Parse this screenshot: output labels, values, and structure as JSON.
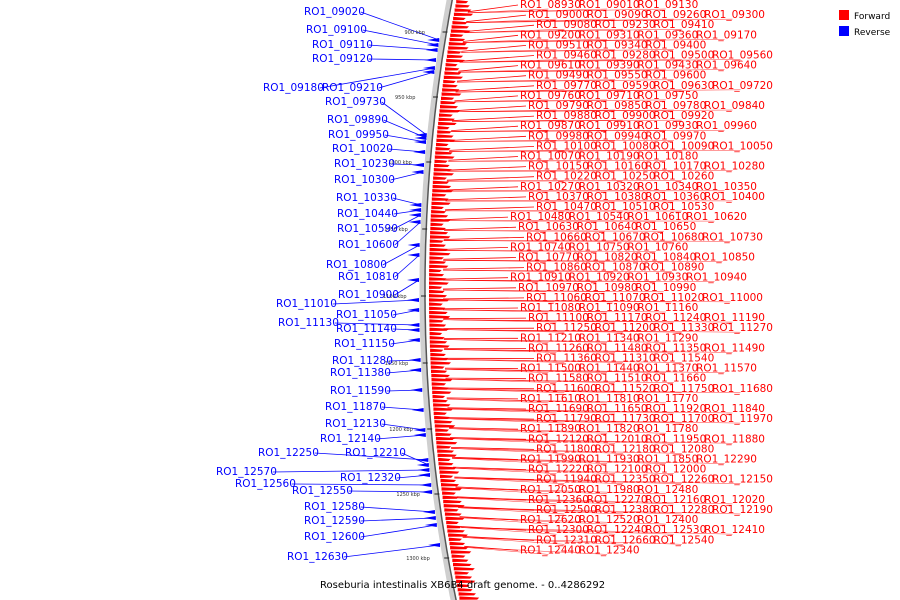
{
  "caption": "Roseburia intestinalis XB6B4 draft genome. - 0..4286292",
  "legend": [
    {
      "label": "Forward",
      "color": "#ff0000"
    },
    {
      "label": "Reverse",
      "color": "#0000ff"
    }
  ],
  "ticks": [
    "900 kbp",
    "950 kbp",
    "1000 kbp",
    "1050 kbp",
    "1100 kbp",
    "1150 kbp",
    "1200 kbp",
    "1250 kbp",
    "1300 kbp"
  ],
  "reverse_labels": [
    "RO1_09020",
    "RO1_09100",
    "RO1_09110",
    "RO1_09120",
    "RO1_09180",
    "RO1_09210",
    "RO1_09730",
    "RO1_09890",
    "RO1_09950",
    "RO1_10020",
    "RO1_10230",
    "RO1_10300",
    "RO1_10330",
    "RO1_10440",
    "RO1_10590",
    "RO1_10600",
    "RO1_10800",
    "RO1_10810",
    "RO1_10900",
    "RO1_11010",
    "RO1_11050",
    "RO1_11130",
    "RO1_11140",
    "RO1_11150",
    "RO1_11280",
    "RO1_11380",
    "RO1_11590",
    "RO1_11870",
    "RO1_12130",
    "RO1_12140",
    "RO1_12250",
    "RO1_12210",
    "RO1_12570",
    "RO1_12320",
    "RO1_12560",
    "RO1_12550",
    "RO1_12580",
    "RO1_12590",
    "RO1_12600",
    "RO1_12630"
  ],
  "forward_labels": [
    "RO1_08930",
    "RO1_09010",
    "RO1_09130",
    "RO1_09000",
    "RO1_09090",
    "RO1_09260",
    "RO1_09300",
    "RO1_09080",
    "RO1_09230",
    "RO1_09410",
    "RO1_09200",
    "RO1_09310",
    "RO1_09360",
    "RO1_09170",
    "RO1_09510",
    "RO1_09340",
    "RO1_09400",
    "RO1_09460",
    "RO1_09280",
    "RO1_09500",
    "RO1_09560",
    "RO1_09610",
    "RO1_09390",
    "RO1_09430",
    "RO1_09640",
    "RO1_09490",
    "RO1_09550",
    "RO1_09600",
    "RO1_09770",
    "RO1_09590",
    "RO1_09630",
    "RO1_09720",
    "RO1_09760",
    "RO1_09710",
    "RO1_09750",
    "RO1_09790",
    "RO1_09850",
    "RO1_09780",
    "RO1_09840",
    "RO1_09880",
    "RO1_09900",
    "RO1_09920",
    "RO1_09870",
    "RO1_09910",
    "RO1_09930",
    "RO1_09960",
    "RO1_09980",
    "RO1_09940",
    "RO1_09970",
    "RO1_10100",
    "RO1_10080",
    "RO1_10090",
    "RO1_10050",
    "RO1_10070",
    "RO1_10190",
    "RO1_10180",
    "RO1_10150",
    "RO1_10160",
    "RO1_10170",
    "RO1_10280",
    "RO1_10220",
    "RO1_10250",
    "RO1_10260",
    "RO1_10270",
    "RO1_10320",
    "RO1_10340",
    "RO1_10350",
    "RO1_10370",
    "RO1_10380",
    "RO1_10360",
    "RO1_10400",
    "RO1_10470",
    "RO1_10510",
    "RO1_10530",
    "RO1_10480",
    "RO1_10540",
    "RO1_10610",
    "RO1_10620",
    "RO1_10630",
    "RO1_10640",
    "RO1_10650",
    "RO1_10660",
    "RO1_10670",
    "RO1_10680",
    "RO1_10730",
    "RO1_10740",
    "RO1_10750",
    "RO1_10760",
    "RO1_10770",
    "RO1_10820",
    "RO1_10840",
    "RO1_10850",
    "RO1_10860",
    "RO1_10870",
    "RO1_10890",
    "RO1_10910",
    "RO1_10920",
    "RO1_10930",
    "RO1_10940",
    "RO1_10970",
    "RO1_10980",
    "RO1_10990",
    "RO1_11060",
    "RO1_11070",
    "RO1_11020",
    "RO1_11000",
    "RO1_11080",
    "RO1_11090",
    "RO1_11160",
    "RO1_11100",
    "RO1_11170",
    "RO1_11240",
    "RO1_11190",
    "RO1_11250",
    "RO1_11200",
    "RO1_11330",
    "RO1_11270",
    "RO1_11210",
    "RO1_11340",
    "RO1_11290",
    "RO1_11260",
    "RO1_11480",
    "RO1_11350",
    "RO1_11490",
    "RO1_11360",
    "RO1_11310",
    "RO1_11540",
    "RO1_11500",
    "RO1_11440",
    "RO1_11370",
    "RO1_11570",
    "RO1_11580",
    "RO1_11510",
    "RO1_11660",
    "RO1_11600",
    "RO1_11520",
    "RO1_11750",
    "RO1_11680",
    "RO1_11610",
    "RO1_11810",
    "RO1_11770",
    "RO1_11690",
    "RO1_11650",
    "RO1_11920",
    "RO1_11840",
    "RO1_11790",
    "RO1_11730",
    "RO1_11700",
    "RO1_11970",
    "RO1_11890",
    "RO1_11820",
    "RO1_11780",
    "RO1_12120",
    "RO1_12010",
    "RO1_11950",
    "RO1_11880",
    "RO1_11800",
    "RO1_12180",
    "RO1_12080",
    "RO1_11990",
    "RO1_11930",
    "RO1_11850",
    "RO1_12290",
    "RO1_12220",
    "RO1_12100",
    "RO1_12000",
    "RO1_11940",
    "RO1_12350",
    "RO1_12260",
    "RO1_12150",
    "RO1_12050",
    "RO1_11980",
    "RO1_12480",
    "RO1_12360",
    "RO1_12270",
    "RO1_12160",
    "RO1_12020",
    "RO1_12500",
    "RO1_12380",
    "RO1_12280",
    "RO1_12190",
    "RO1_12620",
    "RO1_12520",
    "RO1_12400",
    "RO1_12300",
    "RO1_12240",
    "RO1_12530",
    "RO1_12410",
    "RO1_12310",
    "RO1_12660",
    "RO1_12540",
    "RO1_12440",
    "RO1_12340"
  ]
}
